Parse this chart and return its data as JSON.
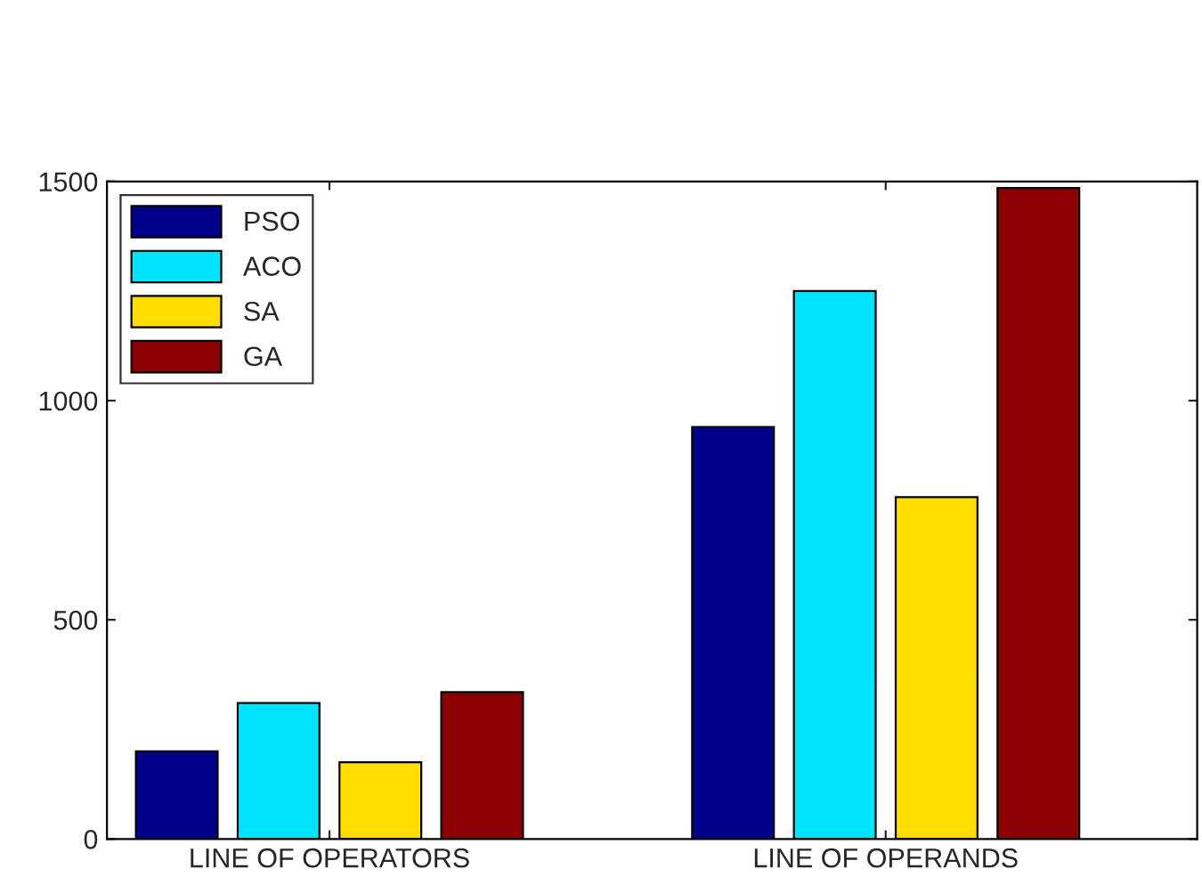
{
  "chart_data": {
    "type": "bar",
    "categories": [
      "LINE OF OPERATORS",
      "LINE OF OPERANDS"
    ],
    "series": [
      {
        "name": "PSO",
        "color": "#00008b",
        "values": [
          200,
          940
        ]
      },
      {
        "name": "ACO",
        "color": "#00e5ff",
        "values": [
          310,
          1250
        ]
      },
      {
        "name": "SA",
        "color": "#ffdd00",
        "values": [
          175,
          780
        ]
      },
      {
        "name": "GA",
        "color": "#8b0000",
        "values": [
          335,
          1485
        ]
      }
    ],
    "ylim": [
      0,
      1500
    ],
    "yticks": [
      0,
      500,
      1000,
      1500
    ],
    "grid": false,
    "legend": "top left"
  }
}
